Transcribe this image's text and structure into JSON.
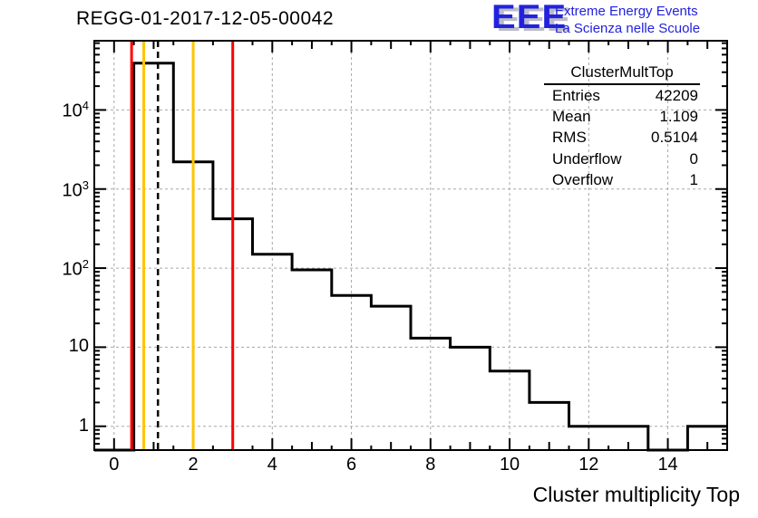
{
  "header": {
    "title": "REGG-01-2017-12-05-00042",
    "logo": {
      "acronym": "EEE",
      "line1": "Extreme Energy Events",
      "line2": "La Scienza nelle Scuole",
      "color": "#2222dd"
    }
  },
  "stats_box": {
    "title": "ClusterMultTop",
    "rows": [
      {
        "label": "Entries",
        "value": "42209"
      },
      {
        "label": "Mean",
        "value": "1.109"
      },
      {
        "label": "RMS",
        "value": "0.5104"
      },
      {
        "label": "Underflow",
        "value": "0"
      },
      {
        "label": "Overflow",
        "value": "1"
      }
    ]
  },
  "chart_data": {
    "type": "bar",
    "subtype": "step-histogram",
    "title": "REGG-01-2017-12-05-00042",
    "xlabel": "Cluster multiplicity Top",
    "ylabel": "",
    "yscale": "log",
    "xlim": [
      -0.5,
      15.5
    ],
    "ylim": [
      0.5,
      75000
    ],
    "bin_width": 1,
    "bin_centers": [
      0,
      1,
      2,
      3,
      4,
      5,
      6,
      7,
      8,
      9,
      10,
      11,
      12,
      13,
      14,
      15
    ],
    "values": [
      0,
      39000,
      2200,
      420,
      150,
      95,
      45,
      33,
      13,
      10,
      5,
      2,
      1,
      1,
      0,
      1
    ],
    "line_color": "#000000",
    "x_major_ticks": [
      0,
      2,
      4,
      6,
      8,
      10,
      12,
      14
    ],
    "x_tick_labels": [
      "0",
      "2",
      "4",
      "6",
      "8",
      "10",
      "12",
      "14"
    ],
    "y_decade_values": [
      1,
      10,
      100,
      1000,
      10000
    ],
    "y_tick_labels": [
      {
        "text": "1"
      },
      {
        "text": "10"
      },
      {
        "text": "10",
        "sup": "2"
      },
      {
        "text": "10",
        "sup": "3"
      },
      {
        "text": "10",
        "sup": "4"
      }
    ],
    "grid": {
      "on": true,
      "color": "#a8a8a8",
      "x_values": [
        0,
        2,
        4,
        6,
        8,
        10,
        12,
        14
      ],
      "y_values": [
        1,
        10,
        100,
        1000,
        10000
      ]
    },
    "threshold_lines": [
      {
        "name": "red-low",
        "x": 0.5,
        "color": "#ff0000",
        "style": "solid"
      },
      {
        "name": "yellow-low",
        "x": 0.75,
        "color": "#ffc400",
        "style": "solid"
      },
      {
        "name": "mean",
        "x": 1.109,
        "color": "#000000",
        "style": "dashed"
      },
      {
        "name": "yellow-high",
        "x": 2,
        "color": "#ffc400",
        "style": "solid"
      },
      {
        "name": "red-high",
        "x": 3,
        "color": "#ff0000",
        "style": "solid"
      }
    ]
  }
}
